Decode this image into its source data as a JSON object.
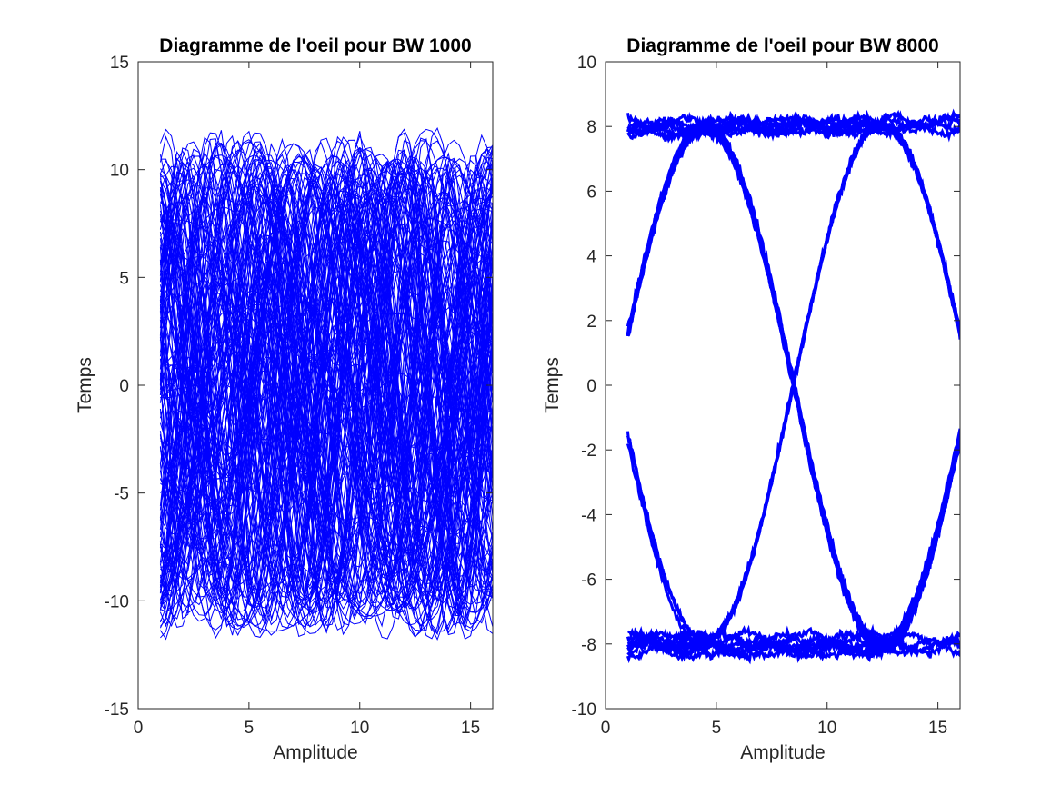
{
  "chart_data": [
    {
      "type": "line",
      "title": "Diagramme de l'oeil pour BW 1000",
      "xlabel": "Amplitude",
      "ylabel": "Temps",
      "xlim": [
        0,
        16
      ],
      "ylim": [
        -15,
        15
      ],
      "xticks": [
        0,
        5,
        10,
        15
      ],
      "yticks": [
        -15,
        -10,
        -5,
        0,
        5,
        10,
        15
      ],
      "x_range": [
        1,
        16
      ],
      "envelope": {
        "upper": 12,
        "lower": -12
      },
      "grid": false,
      "color": "#0000ff",
      "description_of_series": "many overlapping noisy eye traces filling the band between -12 and 12"
    },
    {
      "type": "line",
      "title": "Diagramme de l'oeil pour BW 8000",
      "xlabel": "Amplitude",
      "ylabel": "Temps",
      "xlim": [
        0,
        16
      ],
      "ylim": [
        -10,
        10
      ],
      "xticks": [
        0,
        5,
        10,
        15
      ],
      "yticks": [
        -10,
        -8,
        -6,
        -4,
        -2,
        0,
        2,
        4,
        6,
        8,
        10
      ],
      "x_range": [
        1,
        16
      ],
      "levels": [
        8,
        -8
      ],
      "crossings_x": [
        4.5,
        12.5
      ],
      "transition_centers_x": [
        0.5,
        8.5,
        16.5
      ],
      "grid": false,
      "color": "#0000ff"
    }
  ]
}
